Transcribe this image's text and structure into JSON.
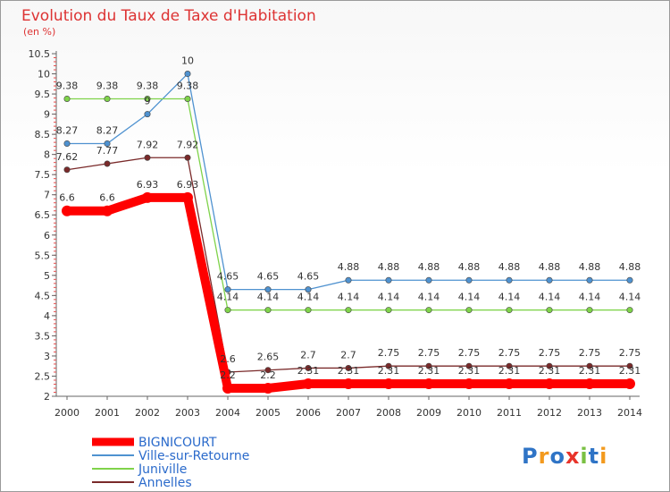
{
  "chart_data": {
    "type": "line",
    "title": "Evolution du Taux de Taxe d'Habitation",
    "subtitle": "(en %)",
    "x": [
      "2000",
      "2001",
      "2002",
      "2003",
      "2004",
      "2005",
      "2006",
      "2007",
      "2008",
      "2009",
      "2010",
      "2011",
      "2012",
      "2013",
      "2014"
    ],
    "ylim": [
      2,
      10.5
    ],
    "yticks": [
      "2",
      "2.5",
      "3",
      "3.5",
      "4",
      "4.5",
      "5",
      "5.5",
      "6",
      "6.5",
      "7",
      "7.5",
      "8",
      "8.5",
      "9",
      "9.5",
      "10",
      "10.5"
    ],
    "grid": false,
    "legend_position": "bottom-left",
    "series": [
      {
        "name": "BIGNICOURT",
        "color": "#ff0000",
        "values": [
          6.6,
          6.6,
          6.93,
          6.93,
          2.2,
          2.2,
          2.31,
          2.31,
          2.31,
          2.31,
          2.31,
          2.31,
          2.31,
          2.31,
          2.31
        ],
        "labels": [
          "6.6",
          "6.6",
          "6.93",
          "6.93",
          "2.2",
          "2.2",
          "2.31",
          "2.31",
          "2.31",
          "2.31",
          "2.31",
          "2.31",
          "2.31",
          "2.31",
          "2.31"
        ]
      },
      {
        "name": "Ville-sur-Retourne",
        "color": "#4f92d0",
        "values": [
          8.27,
          8.27,
          9,
          10,
          4.65,
          4.65,
          4.65,
          4.88,
          4.88,
          4.88,
          4.88,
          4.88,
          4.88,
          4.88,
          4.88
        ],
        "labels": [
          "8.27",
          "8.27",
          "9",
          "10",
          "4.65",
          "4.65",
          "4.65",
          "4.88",
          "4.88",
          "4.88",
          "4.88",
          "4.88",
          "4.88",
          "4.88",
          "4.88"
        ]
      },
      {
        "name": "Juniville",
        "color": "#7fd34a",
        "values": [
          9.38,
          9.38,
          9.38,
          9.38,
          4.14,
          4.14,
          4.14,
          4.14,
          4.14,
          4.14,
          4.14,
          4.14,
          4.14,
          4.14,
          4.14
        ],
        "labels": [
          "9.38",
          "9.38",
          "9.38",
          "9.38",
          "4.14",
          "4.14",
          "4.14",
          "4.14",
          "4.14",
          "4.14",
          "4.14",
          "4.14",
          "4.14",
          "4.14",
          "4.14"
        ]
      },
      {
        "name": "Annelles",
        "color": "#7a2a2a",
        "values": [
          7.62,
          7.77,
          7.92,
          7.92,
          2.6,
          2.65,
          2.7,
          2.7,
          2.75,
          2.75,
          2.75,
          2.75,
          2.75,
          2.75,
          2.75
        ],
        "labels": [
          "7.62",
          "7.77",
          "7.92",
          "7.92",
          "2.6",
          "2.65",
          "2.7",
          "2.7",
          "2.75",
          "2.75",
          "2.75",
          "2.75",
          "2.75",
          "2.75",
          "2.75"
        ]
      }
    ]
  },
  "watermark": {
    "text": "Proxiti"
  }
}
